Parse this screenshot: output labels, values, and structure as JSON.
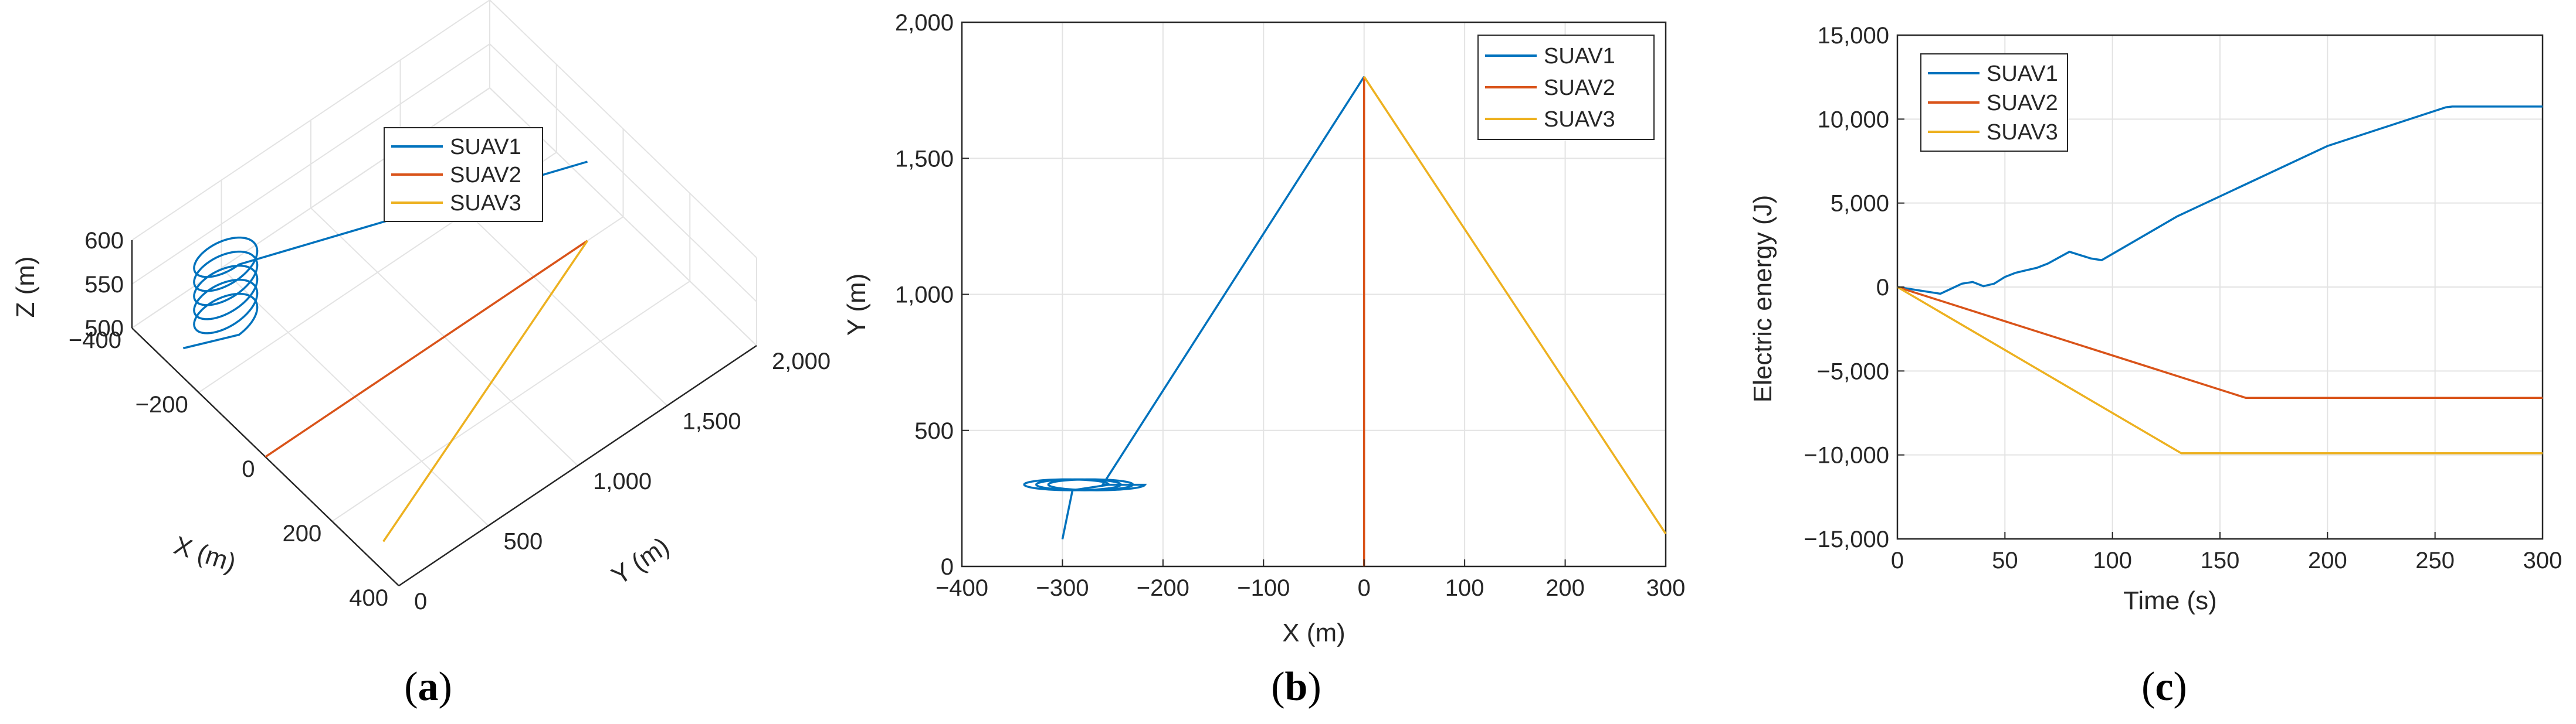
{
  "colors": {
    "SUAV1": "#0072BD",
    "SUAV2": "#D95319",
    "SUAV3": "#EDB120"
  },
  "panels": {
    "a": {
      "label": "a",
      "xlabel": "X (m)",
      "ylabel": "Y (m)",
      "zlabel": "Z (m)"
    },
    "b": {
      "label": "b",
      "xlabel": "X (m)",
      "ylabel": "Y (m)"
    },
    "c": {
      "label": "c",
      "xlabel": "Time (s)",
      "ylabel": "Electric energy (J)"
    }
  },
  "chart_data": [
    {
      "id": "a",
      "type": "line",
      "dimension": "3d",
      "xlabel": "X (m)",
      "ylabel": "Y (m)",
      "zlabel": "Z (m)",
      "xlim": [
        -400,
        400
      ],
      "ylim": [
        0,
        2000
      ],
      "zlim": [
        500,
        600
      ],
      "xticks": [
        "−400",
        "−200",
        "0",
        "200",
        "400"
      ],
      "yticks": [
        "0",
        "500",
        "1,000",
        "1,500",
        "2,000"
      ],
      "zticks": [
        "500",
        "550",
        "600"
      ],
      "grid": true,
      "legend_position": "top",
      "series": [
        {
          "name": "SUAV1",
          "helix": {
            "center_x": -280,
            "center_y": 300,
            "radius": 40,
            "z_start": 510,
            "z_end": 590,
            "turns": 5
          },
          "start": [
            -300,
            100,
            500
          ],
          "end": [
            0,
            1800,
            590
          ]
        },
        {
          "name": "SUAV2",
          "x": [
            0,
            0
          ],
          "y": [
            0,
            1800
          ],
          "z": [
            500,
            500
          ]
        },
        {
          "name": "SUAV3",
          "x": [
            300,
            0
          ],
          "y": [
            100,
            1800
          ],
          "z": [
            500,
            500
          ]
        }
      ]
    },
    {
      "id": "b",
      "type": "line",
      "xlabel": "X (m)",
      "ylabel": "Y (m)",
      "xlim": [
        -400,
        300
      ],
      "ylim": [
        0,
        2000
      ],
      "xticks": [
        "−400",
        "−300",
        "−200",
        "−100",
        "0",
        "100",
        "200",
        "300"
      ],
      "yticks": [
        "0",
        "500",
        "1,000",
        "1,500",
        "2,000"
      ],
      "grid": true,
      "legend_position": "top-right",
      "series": [
        {
          "name": "SUAV1",
          "start": [
            -300,
            100
          ],
          "helix": {
            "center_x": -290,
            "center_y": 300,
            "radius_x": 45,
            "radius_y": 20,
            "loops": 3
          },
          "x": [
            -260,
            0
          ],
          "y": [
            300,
            1800
          ]
        },
        {
          "name": "SUAV2",
          "x": [
            0,
            0
          ],
          "y": [
            0,
            1800
          ]
        },
        {
          "name": "SUAV3",
          "x": [
            0,
            300
          ],
          "y": [
            1800,
            120
          ]
        }
      ]
    },
    {
      "id": "c",
      "type": "line",
      "xlabel": "Time (s)",
      "ylabel": "Electric energy (J)",
      "xlim": [
        0,
        300
      ],
      "ylim": [
        -15000,
        15000
      ],
      "xticks": [
        "0",
        "50",
        "100",
        "150",
        "200",
        "250",
        "300"
      ],
      "yticks": [
        "−15,000",
        "−10,000",
        "−5,000",
        "0",
        "5,000",
        "10,000",
        "15,000"
      ],
      "grid": true,
      "legend_position": "top-left",
      "series": [
        {
          "name": "SUAV1",
          "x": [
            0,
            10,
            20,
            25,
            30,
            35,
            40,
            45,
            50,
            55,
            60,
            65,
            70,
            75,
            80,
            85,
            90,
            95,
            130,
            160,
            200,
            255,
            258,
            300
          ],
          "y": [
            0,
            -200,
            -400,
            -100,
            200,
            300,
            50,
            200,
            600,
            850,
            1000,
            1150,
            1400,
            1750,
            2100,
            1900,
            1700,
            1600,
            4200,
            6000,
            8400,
            10700,
            10750,
            10750
          ]
        },
        {
          "name": "SUAV2",
          "x": [
            0,
            162,
            300
          ],
          "y": [
            0,
            -6600,
            -6600
          ]
        },
        {
          "name": "SUAV3",
          "x": [
            0,
            132,
            300
          ],
          "y": [
            0,
            -9900,
            -9900
          ]
        }
      ]
    }
  ]
}
